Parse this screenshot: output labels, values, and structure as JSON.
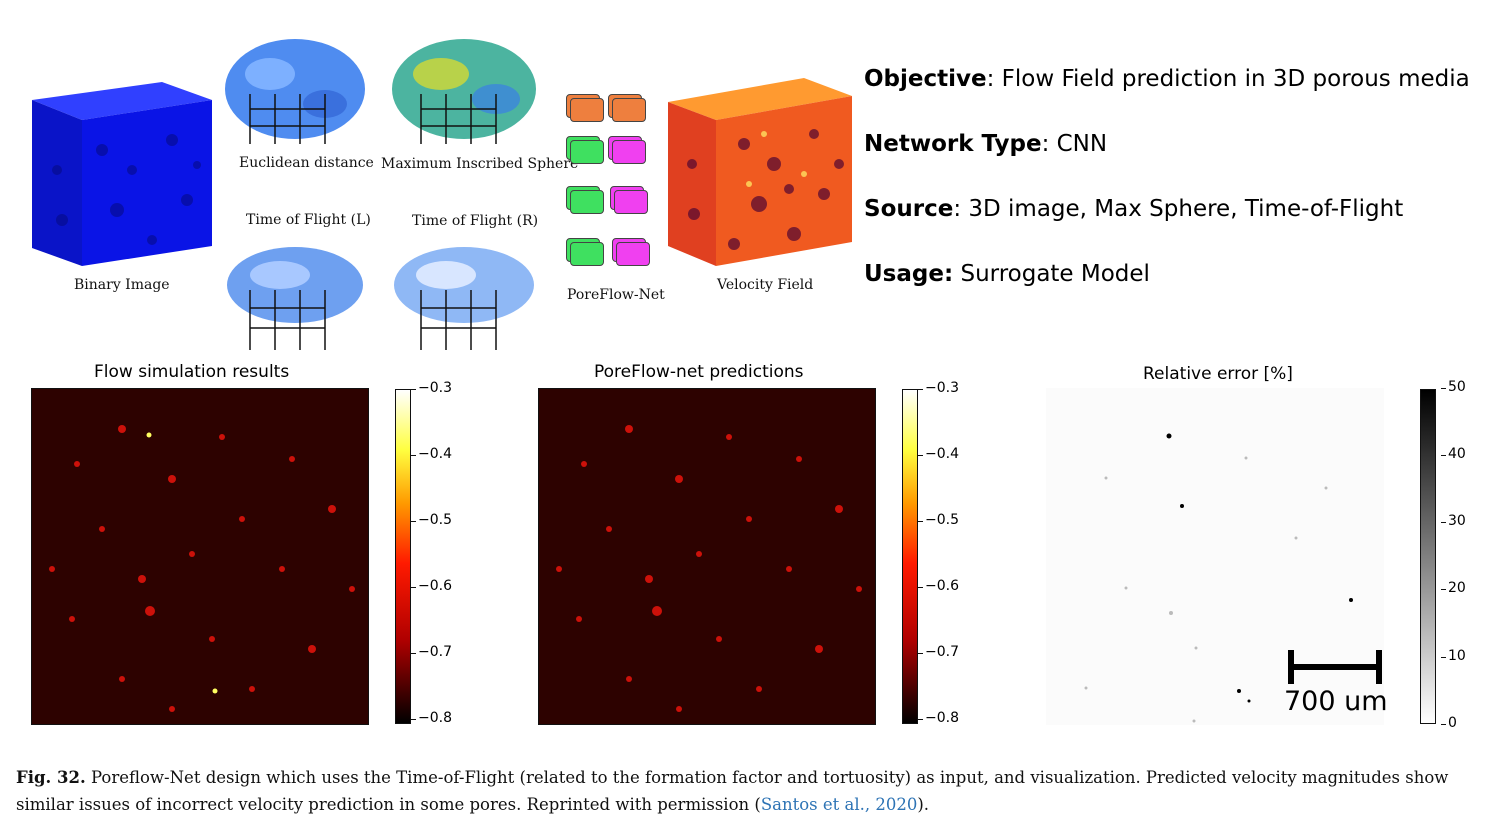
{
  "top_labels": {
    "binary_image": "Binary Image",
    "euclidean_distance": "Euclidean distance",
    "maximum_inscribed_sphere": "Maximum Inscribed Sphere",
    "time_of_flight_l": "Time of Flight (L)",
    "time_of_flight_r": "Time of Flight (R)",
    "poreflow_net": "PoreFlow-Net",
    "velocity_field": "Velocity Field"
  },
  "info": {
    "objective_key": "Objective",
    "objective_val": ": Flow Field prediction in 3D porous media",
    "network_key": "Network Type",
    "network_val": ": CNN",
    "source_key": "Source",
    "source_val": ": 3D image, Max Sphere, Time-of-Flight",
    "usage_key": "Usage:",
    "usage_val": " Surrogate Model"
  },
  "panels": {
    "sim_title": "Flow simulation results",
    "pred_title": "PoreFlow-net predictions",
    "err_title": "Relative error [%]",
    "hot_ticks": [
      "−0.3",
      "−0.4",
      "−0.5",
      "−0.6",
      "−0.7",
      "−0.8"
    ],
    "err_ticks": [
      "50",
      "40",
      "30",
      "20",
      "10",
      "0"
    ],
    "scale_label": "700 um"
  },
  "caption": {
    "fig": "Fig. 32.",
    "text": " Poreflow-Net design which uses the Time-of-Flight (related to the formation factor and tortuosity) as input, and visualization. Predicted velocity magnitudes show similar issues of incorrect velocity prediction in some pores. Reprinted with permission (",
    "cite": "Santos et al., 2020",
    "tail": ")."
  },
  "colors": {
    "binary_cube": "#0a14e6",
    "hot_background": "#2d0200",
    "citation": "#2e74b5"
  }
}
